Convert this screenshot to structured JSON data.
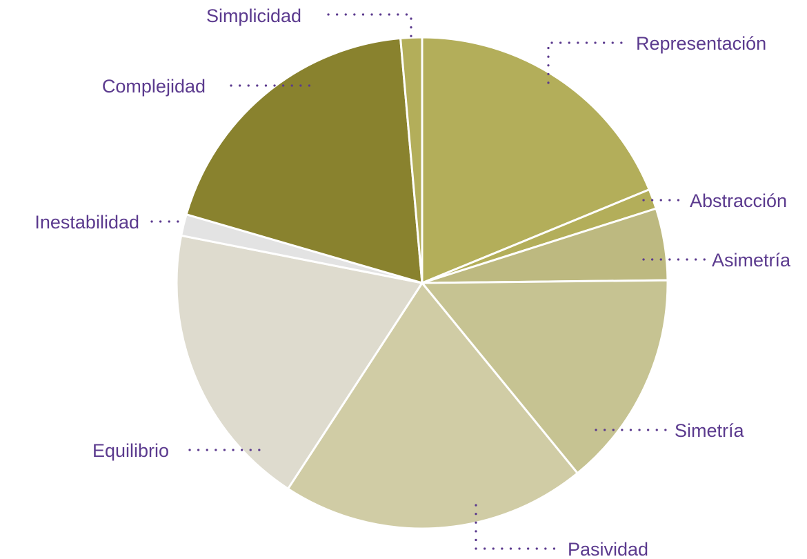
{
  "chart_data": {
    "type": "pie",
    "title": "",
    "legend": "none",
    "label_color": "#5b3a8e",
    "slices": [
      {
        "label": "Representación",
        "value": 18.7,
        "color": "#b3ae5a"
      },
      {
        "label": "Abstracción",
        "value": 1.3,
        "color": "#b3ae5a"
      },
      {
        "label": "Asimetría",
        "value": 4.7,
        "color": "#bdb980"
      },
      {
        "label": "Simetría",
        "value": 14.2,
        "color": "#c6c392"
      },
      {
        "label": "Pasividad",
        "value": 20.0,
        "color": "#d0cca5"
      },
      {
        "label": "Equilibrio",
        "value": 18.8,
        "color": "#dedbce"
      },
      {
        "label": "Inestabilidad",
        "value": 1.4,
        "color": "#e3e3e3"
      },
      {
        "label": "Complejidad",
        "value": 19.0,
        "color": "#89822e"
      },
      {
        "label": "Simplicidad",
        "value": 1.4,
        "color": "#b3ae5a"
      }
    ]
  }
}
